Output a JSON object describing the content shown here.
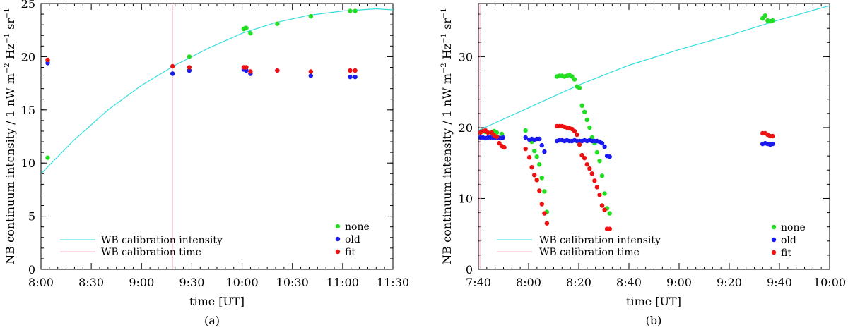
{
  "figure": {
    "panel_a_label": "(a)",
    "panel_b_label": "(b)"
  },
  "colors": {
    "none": "#22dd22",
    "old": "#1a1aee",
    "fit": "#ee1111",
    "wb_intensity": "#33dddd",
    "wb_time": "#ffb6c1"
  },
  "chart_data": [
    {
      "type": "scatter",
      "panel": "(a)",
      "xlabel": "time [UT]",
      "ylabel": "NB continuum intensity / 1 nW m",
      "ylabel_exp1": "−2",
      "ylabel_mid": " Hz",
      "ylabel_exp2": "−1",
      "ylabel_end": " sr",
      "ylabel_exp3": "−1",
      "xlim": [
        480,
        690
      ],
      "ylim": [
        0,
        25
      ],
      "xticks": [
        480,
        510,
        540,
        570,
        600,
        630,
        660,
        690
      ],
      "xtick_labels": [
        "8:00",
        "8:30",
        "9:00",
        "9:30",
        "10:00",
        "10:30",
        "11:00",
        "11:30"
      ],
      "yticks": [
        0,
        5,
        10,
        15,
        20,
        25
      ],
      "ytick_labels": [
        "0",
        "5",
        "10",
        "15",
        "20",
        "25"
      ],
      "legend_left": [
        "WB calibration intensity",
        "WB calibration time"
      ],
      "legend_right": [
        "none",
        "old",
        "fit"
      ],
      "wb_calibration_time": 558.5,
      "wb_curve": {
        "x": [
          480,
          500,
          520,
          540,
          560,
          580,
          600,
          620,
          640,
          660,
          680,
          690
        ],
        "y": [
          9.0,
          12.2,
          15.0,
          17.3,
          19.2,
          20.8,
          22.2,
          23.2,
          23.9,
          24.3,
          24.5,
          24.4
        ]
      },
      "series": [
        {
          "name": "none",
          "x": [
            484,
            484,
            558.5,
            568.5,
            568.5,
            601,
            602,
            602.5,
            605,
            621,
            641,
            664.5,
            667.5
          ],
          "y": [
            10.5,
            19.6,
            18.4,
            20.0,
            18.7,
            22.6,
            22.7,
            22.7,
            22.2,
            23.1,
            23.8,
            24.3,
            24.3
          ]
        },
        {
          "name": "old",
          "x": [
            484,
            558.5,
            568.5,
            601,
            602.5,
            605,
            621,
            641,
            664.5,
            667.5
          ],
          "y": [
            19.4,
            18.4,
            18.7,
            18.8,
            18.7,
            18.4,
            18.7,
            18.2,
            18.1,
            18.1
          ]
        },
        {
          "name": "fit",
          "x": [
            484,
            558.5,
            568.5,
            601,
            602.5,
            605,
            621,
            641,
            664.5,
            667.5
          ],
          "y": [
            19.7,
            19.1,
            19.0,
            19.0,
            19.0,
            18.6,
            18.7,
            18.6,
            18.7,
            18.7
          ]
        }
      ]
    },
    {
      "type": "scatter",
      "panel": "(b)",
      "xlabel": "time [UT]",
      "ylabel": "NB continuum intensity / 1 nW m",
      "ylabel_exp1": "−2",
      "ylabel_mid": " Hz",
      "ylabel_exp2": "−1",
      "ylabel_end": " sr",
      "ylabel_exp3": "−1",
      "xlim": [
        460,
        600
      ],
      "ylim": [
        0,
        37.5
      ],
      "xticks": [
        460,
        480,
        500,
        520,
        540,
        560,
        580,
        600
      ],
      "xtick_labels": [
        "7:40",
        "8:00",
        "8:20",
        "8:40",
        "9:00",
        "9:20",
        "9:40",
        "10:00"
      ],
      "yticks": [
        0,
        10,
        20,
        30
      ],
      "ytick_labels": [
        "0",
        "10",
        "20",
        "30"
      ],
      "legend_left": [
        "WB calibration intensity",
        "WB calibration time"
      ],
      "legend_right": [
        "none",
        "old",
        "fit"
      ],
      "wb_calibration_time": 460.6,
      "wb_curve": {
        "x": [
          460,
          480,
          500,
          520,
          540,
          560,
          580,
          600
        ],
        "y": [
          19.6,
          22.8,
          26.0,
          28.8,
          31.0,
          33.0,
          35.2,
          37.2
        ]
      },
      "series": [
        {
          "name": "none",
          "x": [
            460.8,
            461.8,
            462.8,
            465.3,
            466.3,
            467.3,
            469.3,
            478.8,
            481.3,
            482.3,
            483.3,
            484.3,
            485.3,
            486.3,
            487.3,
            491.3,
            492.3,
            493.3,
            494.3,
            495.3,
            496.3,
            497.3,
            498.3,
            499.3,
            500.3,
            501.3,
            502.3,
            503.3,
            504.3,
            505.3,
            506.3,
            507.3,
            508.3,
            509.3,
            510.3,
            511.3,
            512.3,
            573.3,
            574.3,
            575.3,
            576.3,
            577.3
          ],
          "y": [
            19.3,
            19.5,
            19.4,
            19.4,
            19.5,
            19.3,
            19.1,
            19.6,
            18.0,
            16.7,
            15.9,
            14.8,
            12.9,
            11.0,
            8.1,
            27.2,
            27.3,
            27.3,
            27.2,
            27.3,
            27.4,
            27.2,
            26.8,
            25.8,
            25.6,
            23.1,
            22.2,
            21.1,
            20.0,
            18.6,
            17.8,
            16.5,
            15.3,
            13.2,
            10.7,
            8.6,
            7.9,
            35.4,
            35.8,
            35.1,
            35.0,
            35.1
          ]
        },
        {
          "name": "old",
          "x": [
            460.8,
            461.8,
            462.8,
            463.8,
            464.8,
            465.8,
            466.8,
            467.8,
            468.8,
            469.8,
            478.8,
            480.3,
            481.3,
            482.3,
            483.3,
            484.3,
            485.3,
            486.3,
            491.3,
            492.3,
            493.3,
            494.3,
            495.3,
            496.3,
            497.3,
            498.3,
            499.3,
            500.3,
            501.3,
            502.3,
            503.3,
            504.3,
            505.3,
            506.3,
            507.3,
            508.3,
            509.3,
            510.3,
            511.3,
            512.3,
            573.3,
            574.3,
            575.3,
            576.3,
            577.3
          ],
          "y": [
            18.6,
            18.6,
            18.5,
            18.6,
            18.6,
            18.6,
            18.6,
            18.6,
            18.5,
            18.6,
            18.6,
            18.3,
            18.4,
            18.3,
            18.4,
            18.4,
            17.5,
            16.6,
            18.1,
            18.2,
            18.2,
            18.1,
            18.2,
            18.1,
            18.1,
            18.2,
            18.1,
            18.1,
            18.1,
            18.2,
            18.1,
            18.2,
            18.1,
            18.1,
            18.1,
            18.0,
            17.8,
            17.3,
            16.0,
            15.9,
            17.7,
            17.8,
            17.7,
            17.6,
            17.7
          ]
        },
        {
          "name": "fit",
          "x": [
            460.8,
            461.8,
            462.8,
            463.8,
            465.3,
            466.3,
            467.3,
            468.3,
            469.3,
            470.3,
            478.8,
            480.3,
            481.3,
            482.3,
            483.3,
            484.3,
            485.3,
            486.3,
            487.3,
            491.3,
            492.3,
            493.3,
            494.3,
            495.3,
            496.3,
            497.3,
            498.3,
            499.3,
            500.3,
            501.3,
            502.3,
            503.3,
            504.3,
            505.3,
            506.3,
            507.3,
            508.3,
            509.3,
            510.3,
            511.3,
            512.3,
            573.3,
            574.3,
            575.3,
            576.3,
            577.3
          ],
          "y": [
            19.3,
            19.5,
            19.6,
            19.3,
            19.3,
            18.9,
            18.7,
            17.8,
            17.4,
            17.2,
            17.0,
            15.8,
            14.4,
            13.3,
            12.6,
            11.1,
            9.2,
            7.9,
            6.5,
            20.2,
            20.2,
            20.2,
            20.1,
            20.0,
            19.9,
            19.8,
            19.5,
            19.0,
            17.6,
            16.1,
            15.7,
            14.8,
            14.2,
            13.5,
            12.5,
            11.6,
            10.5,
            9.0,
            8.4,
            5.7,
            5.7,
            19.2,
            19.2,
            19.0,
            18.8,
            18.8
          ]
        }
      ]
    }
  ]
}
